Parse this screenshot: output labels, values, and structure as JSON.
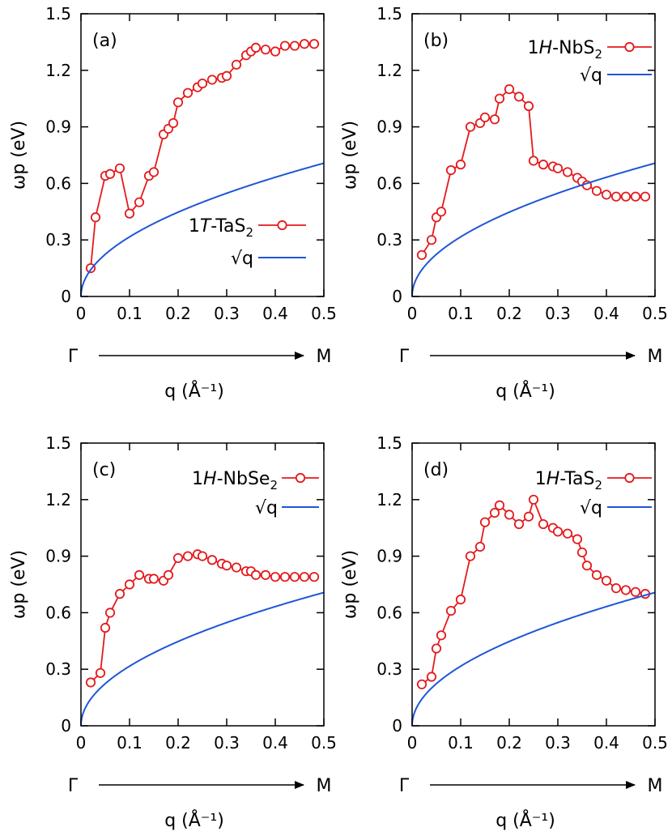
{
  "chart_data": [
    {
      "type": "line",
      "panel_label": "(a)",
      "xlabel": "q (Å⁻¹)",
      "ylabel": "ωp (eV)",
      "xlim": [
        0,
        0.5
      ],
      "ylim": [
        0,
        1.5
      ],
      "xticks": [
        "0",
        "0.1",
        "0.2",
        "0.3",
        "0.4",
        "0.5"
      ],
      "yticks": [
        "0",
        "0.3",
        "0.6",
        "0.9",
        "1.2",
        "1.5"
      ],
      "path_start": "Γ",
      "path_end": "M",
      "legend_position": "middle-right",
      "series": [
        {
          "name": "1T-TaS2",
          "name_parts": {
            "pre": "1",
            "italic": "T",
            "post": "-TaS",
            "sub": "2"
          },
          "color": "#e41a1c",
          "marker": "open-circle",
          "x": [
            0.02,
            0.03,
            0.05,
            0.06,
            0.08,
            0.1,
            0.12,
            0.14,
            0.15,
            0.17,
            0.18,
            0.19,
            0.2,
            0.22,
            0.24,
            0.25,
            0.27,
            0.29,
            0.3,
            0.32,
            0.34,
            0.35,
            0.36,
            0.38,
            0.4,
            0.42,
            0.44,
            0.46,
            0.48
          ],
          "y": [
            0.15,
            0.42,
            0.64,
            0.65,
            0.68,
            0.44,
            0.5,
            0.64,
            0.66,
            0.86,
            0.89,
            0.92,
            1.03,
            1.08,
            1.11,
            1.13,
            1.15,
            1.16,
            1.17,
            1.23,
            1.28,
            1.3,
            1.32,
            1.31,
            1.3,
            1.33,
            1.33,
            1.34,
            1.34
          ]
        },
        {
          "name": "√q",
          "color": "#1f56d6",
          "function": "sqrt",
          "scale": 1.0
        }
      ]
    },
    {
      "type": "line",
      "panel_label": "(b)",
      "xlabel": "q (Å⁻¹)",
      "ylabel": "ωp (eV)",
      "xlim": [
        0,
        0.5
      ],
      "ylim": [
        0,
        1.5
      ],
      "xticks": [
        "0",
        "0.1",
        "0.2",
        "0.3",
        "0.4",
        "0.5"
      ],
      "yticks": [
        "0",
        "0.3",
        "0.6",
        "0.9",
        "1.2",
        "1.5"
      ],
      "path_start": "Γ",
      "path_end": "M",
      "legend_position": "top-right",
      "series": [
        {
          "name": "1H-NbS2",
          "name_parts": {
            "pre": "1",
            "italic": "H",
            "post": "-NbS",
            "sub": "2"
          },
          "color": "#e41a1c",
          "marker": "open-circle",
          "x": [
            0.02,
            0.04,
            0.05,
            0.06,
            0.08,
            0.1,
            0.12,
            0.14,
            0.15,
            0.17,
            0.18,
            0.2,
            0.22,
            0.24,
            0.25,
            0.27,
            0.29,
            0.3,
            0.32,
            0.34,
            0.35,
            0.36,
            0.38,
            0.4,
            0.42,
            0.44,
            0.46,
            0.48
          ],
          "y": [
            0.22,
            0.3,
            0.42,
            0.45,
            0.67,
            0.7,
            0.9,
            0.92,
            0.95,
            0.94,
            1.05,
            1.1,
            1.06,
            1.01,
            0.72,
            0.7,
            0.69,
            0.68,
            0.66,
            0.63,
            0.61,
            0.59,
            0.56,
            0.54,
            0.53,
            0.53,
            0.53,
            0.53
          ]
        },
        {
          "name": "√q",
          "color": "#1f56d6",
          "function": "sqrt",
          "scale": 1.0
        }
      ]
    },
    {
      "type": "line",
      "panel_label": "(c)",
      "xlabel": "q (Å⁻¹)",
      "ylabel": "ωp (eV)",
      "xlim": [
        0,
        0.5
      ],
      "ylim": [
        0,
        1.5
      ],
      "xticks": [
        "0",
        "0.1",
        "0.2",
        "0.3",
        "0.4",
        "0.5"
      ],
      "yticks": [
        "0",
        "0.3",
        "0.6",
        "0.9",
        "1.2",
        "1.5"
      ],
      "path_start": "Γ",
      "path_end": "M",
      "legend_position": "top-right",
      "series": [
        {
          "name": "1H-NbSe2",
          "name_parts": {
            "pre": "1",
            "italic": "H",
            "post": "-NbSe",
            "sub": "2"
          },
          "color": "#e41a1c",
          "marker": "open-circle",
          "x": [
            0.02,
            0.04,
            0.05,
            0.06,
            0.08,
            0.1,
            0.12,
            0.14,
            0.15,
            0.17,
            0.18,
            0.2,
            0.22,
            0.24,
            0.25,
            0.27,
            0.29,
            0.3,
            0.32,
            0.34,
            0.35,
            0.36,
            0.38,
            0.4,
            0.42,
            0.44,
            0.46,
            0.48
          ],
          "y": [
            0.23,
            0.28,
            0.52,
            0.6,
            0.7,
            0.75,
            0.8,
            0.78,
            0.78,
            0.77,
            0.8,
            0.89,
            0.9,
            0.91,
            0.9,
            0.88,
            0.86,
            0.85,
            0.84,
            0.82,
            0.82,
            0.8,
            0.8,
            0.79,
            0.79,
            0.79,
            0.79,
            0.79
          ]
        },
        {
          "name": "√q",
          "color": "#1f56d6",
          "function": "sqrt",
          "scale": 1.0
        }
      ]
    },
    {
      "type": "line",
      "panel_label": "(d)",
      "xlabel": "q (Å⁻¹)",
      "ylabel": "ωp (eV)",
      "xlim": [
        0,
        0.5
      ],
      "ylim": [
        0,
        1.5
      ],
      "xticks": [
        "0",
        "0.1",
        "0.2",
        "0.3",
        "0.4",
        "0.5"
      ],
      "yticks": [
        "0",
        "0.3",
        "0.6",
        "0.9",
        "1.2",
        "1.5"
      ],
      "path_start": "Γ",
      "path_end": "M",
      "legend_position": "top-right",
      "series": [
        {
          "name": "1H-TaS2",
          "name_parts": {
            "pre": "1",
            "italic": "H",
            "post": "-TaS",
            "sub": "2"
          },
          "color": "#e41a1c",
          "marker": "open-circle",
          "x": [
            0.02,
            0.04,
            0.05,
            0.06,
            0.08,
            0.1,
            0.12,
            0.14,
            0.15,
            0.17,
            0.18,
            0.2,
            0.22,
            0.24,
            0.25,
            0.27,
            0.29,
            0.3,
            0.32,
            0.34,
            0.35,
            0.36,
            0.38,
            0.4,
            0.42,
            0.44,
            0.46,
            0.48
          ],
          "y": [
            0.22,
            0.26,
            0.41,
            0.48,
            0.61,
            0.67,
            0.9,
            0.95,
            1.08,
            1.13,
            1.17,
            1.12,
            1.07,
            1.11,
            1.2,
            1.07,
            1.05,
            1.03,
            1.02,
            0.99,
            0.92,
            0.85,
            0.8,
            0.77,
            0.73,
            0.72,
            0.71,
            0.7
          ]
        },
        {
          "name": "√q",
          "color": "#1f56d6",
          "function": "sqrt",
          "scale": 1.0
        }
      ]
    }
  ]
}
